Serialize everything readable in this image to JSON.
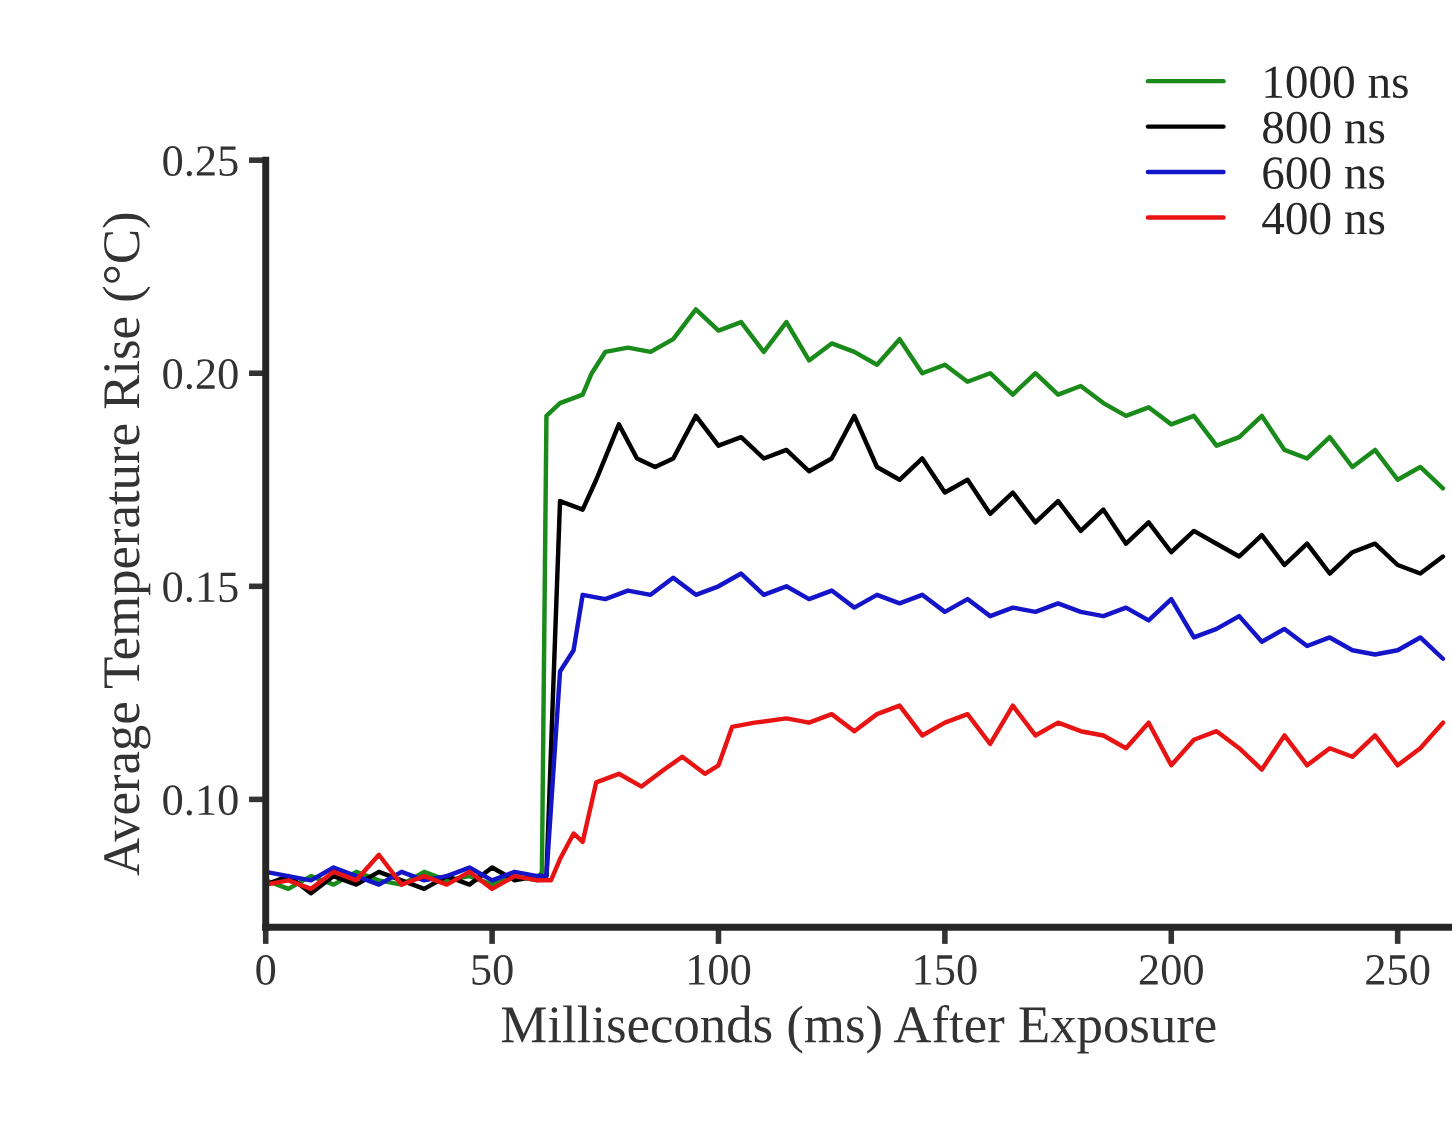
{
  "chart_data": {
    "type": "line",
    "xlabel": "Milliseconds (ms) After Exposure",
    "ylabel": "Average Temperature Rise (°C)",
    "xlim": [
      0,
      262
    ],
    "ylim": [
      0.07,
      0.25
    ],
    "xticks": [
      0,
      50,
      100,
      150,
      200,
      250
    ],
    "yticks": [
      {
        "value": 0.1,
        "label": "0.10"
      },
      {
        "value": 0.15,
        "label": "0.15"
      },
      {
        "value": 0.2,
        "label": "0.20"
      },
      {
        "value": 0.25,
        "label": "0.25"
      }
    ],
    "grid": false,
    "legend": "top right",
    "marker": "none",
    "line_style": "solid",
    "series": [
      {
        "name": "1000 ns",
        "color": "#1a8a1a",
        "x": [
          0,
          5,
          10,
          15,
          20,
          25,
          30,
          35,
          40,
          45,
          50,
          55,
          60,
          61,
          62,
          65,
          70,
          72,
          75,
          80,
          85,
          90,
          95,
          100,
          105,
          110,
          115,
          120,
          125,
          130,
          135,
          140,
          145,
          150,
          155,
          160,
          165,
          170,
          175,
          180,
          185,
          190,
          195,
          200,
          205,
          210,
          215,
          220,
          225,
          230,
          235,
          240,
          245,
          250,
          255,
          260
        ],
        "values": [
          0.081,
          0.079,
          0.082,
          0.08,
          0.083,
          0.081,
          0.08,
          0.083,
          0.081,
          0.082,
          0.08,
          0.082,
          0.081,
          0.083,
          0.19,
          0.193,
          0.195,
          0.2,
          0.205,
          0.206,
          0.205,
          0.208,
          0.215,
          0.21,
          0.212,
          0.205,
          0.212,
          0.203,
          0.207,
          0.205,
          0.202,
          0.208,
          0.2,
          0.202,
          0.198,
          0.2,
          0.195,
          0.2,
          0.195,
          0.197,
          0.193,
          0.19,
          0.192,
          0.188,
          0.19,
          0.183,
          0.185,
          0.19,
          0.182,
          0.18,
          0.185,
          0.178,
          0.182,
          0.175,
          0.178,
          0.173
        ]
      },
      {
        "name": "800 ns",
        "color": "#000000",
        "x": [
          0,
          5,
          10,
          15,
          20,
          25,
          30,
          35,
          40,
          45,
          50,
          55,
          60,
          62,
          65,
          70,
          73,
          78,
          82,
          86,
          90,
          95,
          100,
          105,
          110,
          115,
          120,
          125,
          130,
          135,
          140,
          145,
          150,
          155,
          160,
          165,
          170,
          175,
          180,
          185,
          190,
          195,
          200,
          205,
          210,
          215,
          220,
          225,
          230,
          235,
          240,
          245,
          250,
          255,
          260
        ],
        "values": [
          0.08,
          0.082,
          0.078,
          0.082,
          0.08,
          0.083,
          0.081,
          0.079,
          0.082,
          0.08,
          0.084,
          0.081,
          0.082,
          0.082,
          0.17,
          0.168,
          0.175,
          0.188,
          0.18,
          0.178,
          0.18,
          0.19,
          0.183,
          0.185,
          0.18,
          0.182,
          0.177,
          0.18,
          0.19,
          0.178,
          0.175,
          0.18,
          0.172,
          0.175,
          0.167,
          0.172,
          0.165,
          0.17,
          0.163,
          0.168,
          0.16,
          0.165,
          0.158,
          0.163,
          0.16,
          0.157,
          0.162,
          0.155,
          0.16,
          0.153,
          0.158,
          0.16,
          0.155,
          0.153,
          0.157
        ]
      },
      {
        "name": "600 ns",
        "color": "#1414c8",
        "x": [
          0,
          5,
          10,
          15,
          20,
          25,
          30,
          35,
          40,
          45,
          50,
          55,
          60,
          62,
          65,
          68,
          70,
          75,
          80,
          85,
          90,
          95,
          100,
          105,
          110,
          115,
          120,
          125,
          130,
          135,
          140,
          145,
          150,
          155,
          160,
          165,
          170,
          175,
          180,
          185,
          190,
          195,
          200,
          205,
          210,
          215,
          220,
          225,
          230,
          235,
          240,
          245,
          250,
          255,
          260
        ],
        "values": [
          0.083,
          0.082,
          0.081,
          0.084,
          0.082,
          0.08,
          0.083,
          0.081,
          0.082,
          0.084,
          0.081,
          0.083,
          0.082,
          0.082,
          0.13,
          0.135,
          0.148,
          0.147,
          0.149,
          0.148,
          0.152,
          0.148,
          0.15,
          0.153,
          0.148,
          0.15,
          0.147,
          0.149,
          0.145,
          0.148,
          0.146,
          0.148,
          0.144,
          0.147,
          0.143,
          0.145,
          0.144,
          0.146,
          0.144,
          0.143,
          0.145,
          0.142,
          0.147,
          0.138,
          0.14,
          0.143,
          0.137,
          0.14,
          0.136,
          0.138,
          0.135,
          0.134,
          0.135,
          0.138,
          0.133
        ]
      },
      {
        "name": "400 ns",
        "color": "#e81414",
        "x": [
          0,
          5,
          10,
          15,
          20,
          25,
          30,
          35,
          40,
          45,
          50,
          55,
          60,
          63,
          65,
          68,
          70,
          73,
          78,
          83,
          88,
          92,
          97,
          100,
          103,
          108,
          115,
          120,
          125,
          130,
          135,
          140,
          145,
          150,
          155,
          160,
          165,
          170,
          175,
          180,
          185,
          190,
          195,
          200,
          205,
          210,
          215,
          220,
          225,
          230,
          235,
          240,
          245,
          250,
          255,
          260
        ],
        "values": [
          0.08,
          0.081,
          0.079,
          0.083,
          0.081,
          0.087,
          0.08,
          0.082,
          0.08,
          0.083,
          0.079,
          0.082,
          0.081,
          0.081,
          0.086,
          0.092,
          0.09,
          0.104,
          0.106,
          0.103,
          0.107,
          0.11,
          0.106,
          0.108,
          0.117,
          0.118,
          0.119,
          0.118,
          0.12,
          0.116,
          0.12,
          0.122,
          0.115,
          0.118,
          0.12,
          0.113,
          0.122,
          0.115,
          0.118,
          0.116,
          0.115,
          0.112,
          0.118,
          0.108,
          0.114,
          0.116,
          0.112,
          0.107,
          0.115,
          0.108,
          0.112,
          0.11,
          0.115,
          0.108,
          0.112,
          0.118
        ]
      }
    ]
  }
}
